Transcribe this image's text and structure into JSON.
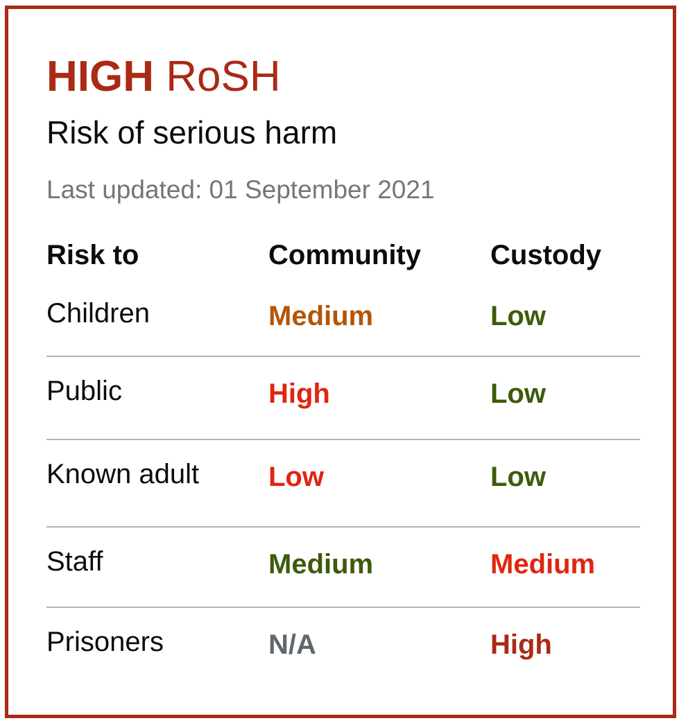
{
  "header": {
    "level": "HIGH",
    "code": "RoSH",
    "subtitle": "Risk of serious harm",
    "last_updated": "Last updated: 01 September 2021"
  },
  "table": {
    "columns": [
      "Risk to",
      "Community",
      "Custody"
    ],
    "rows": [
      {
        "label": "Children",
        "community": "Medium",
        "custody": "Low",
        "community_color": "#b35506",
        "custody_color": "#3d5b0a"
      },
      {
        "label": "Public",
        "community": "High",
        "custody": "Low",
        "community_color": "#e0250f",
        "custody_color": "#3d5b0a"
      },
      {
        "label": "Known adult",
        "community": "Low",
        "custody": "Low",
        "community_color": "#e0250f",
        "custody_color": "#3d5b0a"
      },
      {
        "label": "Staff",
        "community": "Medium",
        "custody": "Medium",
        "community_color": "#3d5b0a",
        "custody_color": "#e0250f"
      },
      {
        "label": "Prisoners",
        "community": "N/A",
        "custody": "High",
        "community_color": "#5f686d",
        "custody_color": "#aa2a16"
      }
    ]
  },
  "colors": {
    "border": "#aa2a16",
    "title": "#aa2a16",
    "muted": "#6f777b",
    "divider": "#b1b4b6"
  }
}
